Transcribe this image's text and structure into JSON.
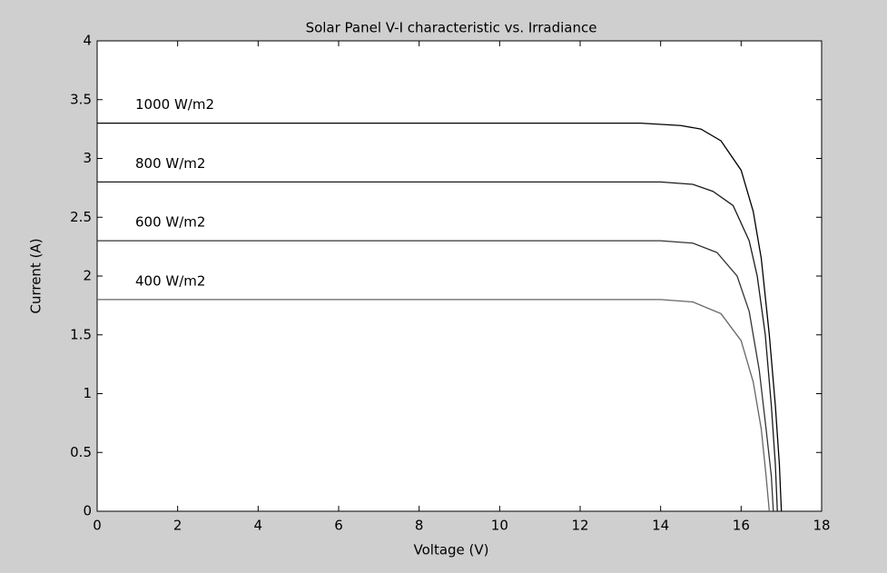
{
  "chart_data": {
    "type": "line",
    "title": "Solar Panel V-I characteristic vs. Irradiance",
    "xlabel": "Voltage (V)",
    "ylabel": "Current (A)",
    "xlim": [
      0,
      18
    ],
    "ylim": [
      0,
      4
    ],
    "xticks": [
      0,
      2,
      4,
      6,
      8,
      10,
      12,
      14,
      16,
      18
    ],
    "yticks": [
      0,
      0.5,
      1,
      1.5,
      2,
      2.5,
      3,
      3.5,
      4
    ],
    "grid": false,
    "series": [
      {
        "name": "1000 W/m2",
        "color": "#000000",
        "x": [
          0,
          13.5,
          14.5,
          15,
          15.5,
          16,
          16.3,
          16.5,
          16.7,
          16.85,
          16.95,
          17.0
        ],
        "values": [
          3.3,
          3.3,
          3.28,
          3.25,
          3.15,
          2.9,
          2.55,
          2.15,
          1.5,
          0.9,
          0.4,
          0
        ]
      },
      {
        "name": "800 W/m2",
        "color": "#1a1a1a",
        "x": [
          0,
          14,
          14.8,
          15.3,
          15.8,
          16.2,
          16.4,
          16.6,
          16.75,
          16.85,
          16.9
        ],
        "values": [
          2.8,
          2.8,
          2.78,
          2.72,
          2.6,
          2.3,
          2.0,
          1.5,
          0.9,
          0.4,
          0
        ]
      },
      {
        "name": "600 W/m2",
        "color": "#333333",
        "x": [
          0,
          14,
          14.8,
          15.4,
          15.9,
          16.2,
          16.45,
          16.62,
          16.75,
          16.8
        ],
        "values": [
          2.3,
          2.3,
          2.28,
          2.2,
          2.0,
          1.7,
          1.2,
          0.7,
          0.3,
          0
        ]
      },
      {
        "name": "400 W/m2",
        "color": "#666666",
        "x": [
          0,
          14,
          14.8,
          15.5,
          16,
          16.3,
          16.5,
          16.62,
          16.7
        ],
        "values": [
          1.8,
          1.8,
          1.78,
          1.68,
          1.45,
          1.1,
          0.7,
          0.3,
          0
        ]
      }
    ]
  }
}
